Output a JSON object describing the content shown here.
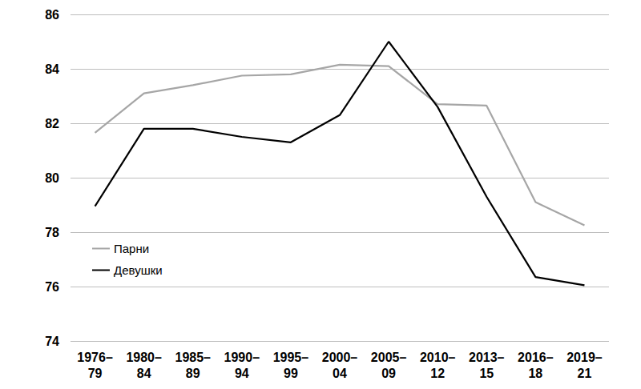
{
  "chart_data": {
    "type": "line",
    "categories": [
      "1976–79",
      "1980–84",
      "1985–89",
      "1990–94",
      "1995–99",
      "2000–04",
      "2005–09",
      "2010–12",
      "2013–15",
      "2016–18",
      "2019–21"
    ],
    "series": [
      {
        "name": "Парни",
        "color": "#a6a6a6",
        "values": [
          81.65,
          83.1,
          83.4,
          83.75,
          83.8,
          84.15,
          84.1,
          82.7,
          82.65,
          79.1,
          78.25
        ]
      },
      {
        "name": "Девушки",
        "color": "#000000",
        "values": [
          78.95,
          81.8,
          81.8,
          81.5,
          81.3,
          82.3,
          85.0,
          82.6,
          79.3,
          76.35,
          76.05
        ]
      }
    ],
    "ylim": [
      74,
      86
    ],
    "yticks": [
      74,
      76,
      78,
      80,
      82,
      84,
      86
    ],
    "grid": true,
    "legend": "lower left"
  }
}
